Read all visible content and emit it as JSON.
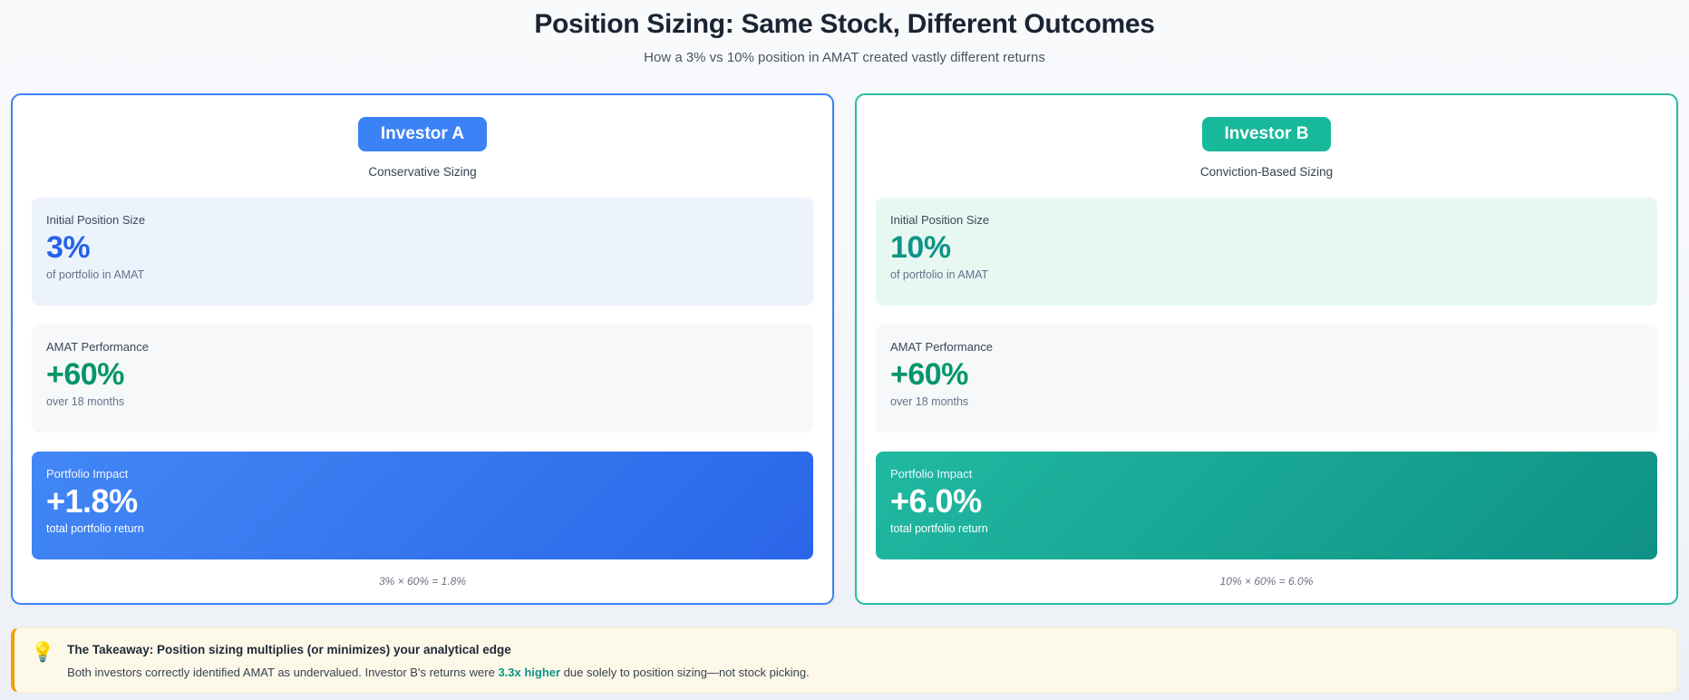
{
  "header": {
    "title": "Position Sizing: Same Stock, Different Outcomes",
    "subtitle": "How a 3% vs 10% position in AMAT created vastly different returns"
  },
  "colors": {
    "investor_a_accent": "#3b82f6",
    "investor_b_accent": "#18b89a",
    "performance_green": "#059669",
    "impact_gradient_a": [
      "#4287f5",
      "#2a66e8"
    ],
    "impact_gradient_b": [
      "#20b9a2",
      "#0f9185"
    ],
    "takeaway_background": "#fdf9e9",
    "takeaway_border": "#f59e0b",
    "highlight_teal": "#0d9488"
  },
  "investors": [
    {
      "badge": "Investor A",
      "strategy": "Conservative Sizing",
      "accent": "#3b82f6",
      "stats": [
        {
          "label": "Initial Position Size",
          "value": "3%",
          "sub": "of portfolio in AMAT"
        },
        {
          "label": "AMAT Performance",
          "value": "+60%",
          "sub": "over 18 months"
        },
        {
          "label": "Portfolio Impact",
          "value": "+1.8%",
          "sub": "total portfolio return"
        }
      ],
      "formula": "3% × 60% = 1.8%"
    },
    {
      "badge": "Investor B",
      "strategy": "Conviction-Based Sizing",
      "accent": "#18b89a",
      "stats": [
        {
          "label": "Initial Position Size",
          "value": "10%",
          "sub": "of portfolio in AMAT"
        },
        {
          "label": "AMAT Performance",
          "value": "+60%",
          "sub": "over 18 months"
        },
        {
          "label": "Portfolio Impact",
          "value": "+6.0%",
          "sub": "total portfolio return"
        }
      ],
      "formula": "10% × 60% = 6.0%"
    }
  ],
  "takeaway": {
    "icon": "💡",
    "title": "The Takeaway: Position sizing multiplies (or minimizes) your analytical edge",
    "body_prefix": "Both investors correctly identified AMAT as undervalued. Investor B's returns were ",
    "highlight": "3.3x higher",
    "body_suffix": " due solely to position sizing—not stock picking."
  }
}
